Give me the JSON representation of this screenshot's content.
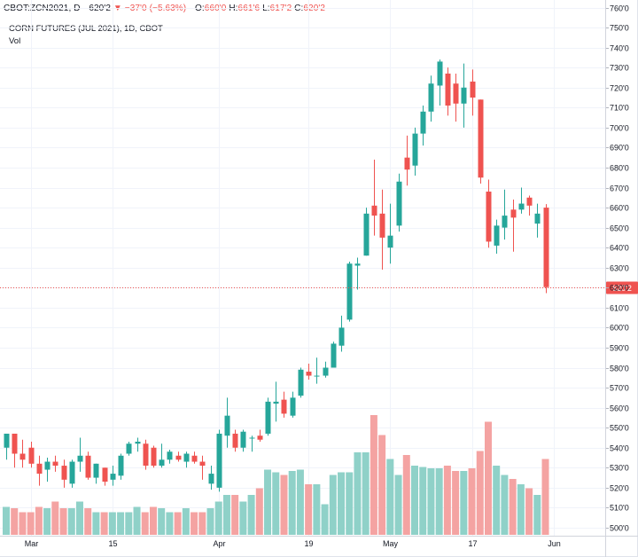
{
  "header": {
    "symbol": "CBOT:ZCN2021",
    "interval": "D",
    "last": "620'2",
    "arrow": "▼",
    "change": "−37'0 (−5.63%)",
    "open_label": "O:",
    "open": "660'0",
    "high_label": "H:",
    "high": "661'6",
    "low_label": "L:",
    "low": "617'2",
    "close_label": "C:",
    "close": "620'2"
  },
  "legend": {
    "title": "CORN FUTURES (JUL 2021), 1D, CBOT",
    "volume_label": "Vol"
  },
  "price_badge": "620'2",
  "colors": {
    "up": "#26a69a",
    "down": "#ef5350",
    "vol_up": "#8fd1c8",
    "vol_down": "#f4a3a2",
    "grid": "#f0f3fa",
    "price_line": "#ef5350"
  },
  "chart_data": {
    "type": "candlestick",
    "title": "CORN FUTURES (JUL 2021), 1D, CBOT",
    "y_axis": {
      "ticks": [
        "500'0",
        "510'0",
        "520'0",
        "530'0",
        "540'0",
        "550'0",
        "560'0",
        "570'0",
        "580'0",
        "590'0",
        "600'0",
        "610'0",
        "620'0",
        "630'0",
        "640'0",
        "650'0",
        "660'0",
        "670'0",
        "680'0",
        "690'0",
        "700'0",
        "710'0",
        "720'0",
        "730'0",
        "740'0",
        "750'0",
        "760'0"
      ],
      "range": [
        496,
        762
      ],
      "position": "right"
    },
    "x_axis": {
      "labels": [
        {
          "text": "Mar",
          "index": 3
        },
        {
          "text": "15",
          "index": 13
        },
        {
          "text": "Apr",
          "index": 26
        },
        {
          "text": "19",
          "index": 37
        },
        {
          "text": "May",
          "index": 47
        },
        {
          "text": "17",
          "index": 57
        },
        {
          "text": "Jun",
          "index": 67
        }
      ]
    },
    "volume_scale_max": 1,
    "candles": [
      {
        "o": 540,
        "h": 547,
        "l": 534,
        "c": 547,
        "v": 0.21
      },
      {
        "o": 547,
        "h": 547,
        "l": 530,
        "c": 537,
        "v": 0.2
      },
      {
        "o": 537,
        "h": 544,
        "l": 530,
        "c": 534,
        "v": 0.17
      },
      {
        "o": 540,
        "h": 543,
        "l": 530,
        "c": 532,
        "v": 0.17
      },
      {
        "o": 532,
        "h": 536,
        "l": 521,
        "c": 527,
        "v": 0.21
      },
      {
        "o": 529,
        "h": 535,
        "l": 523,
        "c": 533,
        "v": 0.2
      },
      {
        "o": 533,
        "h": 536,
        "l": 528,
        "c": 531,
        "v": 0.25
      },
      {
        "o": 531,
        "h": 534,
        "l": 520,
        "c": 524,
        "v": 0.2
      },
      {
        "o": 522,
        "h": 534,
        "l": 520,
        "c": 533,
        "v": 0.2
      },
      {
        "o": 533,
        "h": 545,
        "l": 528,
        "c": 536,
        "v": 0.25
      },
      {
        "o": 536,
        "h": 538,
        "l": 524,
        "c": 525,
        "v": 0.2
      },
      {
        "o": 525,
        "h": 532,
        "l": 522,
        "c": 532,
        "v": 0.17
      },
      {
        "o": 530,
        "h": 530,
        "l": 521,
        "c": 523,
        "v": 0.17
      },
      {
        "o": 524,
        "h": 531,
        "l": 521,
        "c": 527,
        "v": 0.17
      },
      {
        "o": 526,
        "h": 537,
        "l": 524,
        "c": 536,
        "v": 0.17
      },
      {
        "o": 537,
        "h": 543,
        "l": 536,
        "c": 542,
        "v": 0.17
      },
      {
        "o": 542,
        "h": 545,
        "l": 538,
        "c": 543,
        "v": 0.21
      },
      {
        "o": 542,
        "h": 544,
        "l": 529,
        "c": 531,
        "v": 0.17
      },
      {
        "o": 540,
        "h": 541,
        "l": 530,
        "c": 531,
        "v": 0.21
      },
      {
        "o": 531,
        "h": 542,
        "l": 530,
        "c": 534,
        "v": 0.2
      },
      {
        "o": 534,
        "h": 539,
        "l": 532,
        "c": 538,
        "v": 0.17
      },
      {
        "o": 536,
        "h": 538,
        "l": 533,
        "c": 534,
        "v": 0.17
      },
      {
        "o": 533,
        "h": 538,
        "l": 530,
        "c": 537,
        "v": 0.2
      },
      {
        "o": 536,
        "h": 538,
        "l": 532,
        "c": 533,
        "v": 0.17
      },
      {
        "o": 533,
        "h": 536,
        "l": 524,
        "c": 531,
        "v": 0.17
      },
      {
        "o": 522,
        "h": 531,
        "l": 519,
        "c": 527,
        "v": 0.2
      },
      {
        "o": 520,
        "h": 549,
        "l": 518,
        "c": 547,
        "v": 0.25
      },
      {
        "o": 546,
        "h": 565,
        "l": 540,
        "c": 556,
        "v": 0.3
      },
      {
        "o": 547,
        "h": 549,
        "l": 538,
        "c": 540,
        "v": 0.3
      },
      {
        "o": 540,
        "h": 549,
        "l": 538,
        "c": 548,
        "v": 0.25
      },
      {
        "o": 545,
        "h": 546,
        "l": 538,
        "c": 545,
        "v": 0.3
      },
      {
        "o": 546,
        "h": 549,
        "l": 543,
        "c": 544,
        "v": 0.35
      },
      {
        "o": 547,
        "h": 565,
        "l": 546,
        "c": 563,
        "v": 0.49
      },
      {
        "o": 562,
        "h": 573,
        "l": 553,
        "c": 563,
        "v": 0.47
      },
      {
        "o": 564,
        "h": 568,
        "l": 555,
        "c": 557,
        "v": 0.45
      },
      {
        "o": 556,
        "h": 568,
        "l": 555,
        "c": 565,
        "v": 0.48
      },
      {
        "o": 566,
        "h": 580,
        "l": 565,
        "c": 579,
        "v": 0.49
      },
      {
        "o": 578,
        "h": 582,
        "l": 574,
        "c": 576,
        "v": 0.38
      },
      {
        "o": 576,
        "h": 585,
        "l": 572,
        "c": 576,
        "v": 0.38
      },
      {
        "o": 576,
        "h": 583,
        "l": 575,
        "c": 580,
        "v": 0.23
      },
      {
        "o": 580,
        "h": 593,
        "l": 580,
        "c": 592,
        "v": 0.45
      },
      {
        "o": 591,
        "h": 606,
        "l": 588,
        "c": 600,
        "v": 0.47
      },
      {
        "o": 604,
        "h": 633,
        "l": 603,
        "c": 632,
        "v": 0.47
      },
      {
        "o": 631,
        "h": 635,
        "l": 619,
        "c": 632,
        "v": 0.62
      },
      {
        "o": 636,
        "h": 660,
        "l": 636,
        "c": 657,
        "v": 0.62
      },
      {
        "o": 661,
        "h": 684,
        "l": 646,
        "c": 656,
        "v": 0.9
      },
      {
        "o": 657,
        "h": 669,
        "l": 629,
        "c": 645,
        "v": 0.75
      },
      {
        "o": 640,
        "h": 662,
        "l": 632,
        "c": 646,
        "v": 0.57
      },
      {
        "o": 651,
        "h": 677,
        "l": 648,
        "c": 673,
        "v": 0.45
      },
      {
        "o": 685,
        "h": 696,
        "l": 671,
        "c": 679,
        "v": 0.6
      },
      {
        "o": 681,
        "h": 700,
        "l": 676,
        "c": 697,
        "v": 0.52
      },
      {
        "o": 697,
        "h": 711,
        "l": 691,
        "c": 708,
        "v": 0.51
      },
      {
        "o": 708,
        "h": 726,
        "l": 703,
        "c": 722,
        "v": 0.5
      },
      {
        "o": 721,
        "h": 734,
        "l": 711,
        "c": 733,
        "v": 0.5
      },
      {
        "o": 727,
        "h": 730,
        "l": 706,
        "c": 711,
        "v": 0.52
      },
      {
        "o": 722,
        "h": 727,
        "l": 703,
        "c": 712,
        "v": 0.48
      },
      {
        "o": 712,
        "h": 732,
        "l": 700,
        "c": 720,
        "v": 0.48
      },
      {
        "o": 723,
        "h": 729,
        "l": 706,
        "c": 715,
        "v": 0.5
      },
      {
        "o": 714,
        "h": 714,
        "l": 672,
        "c": 675,
        "v": 0.63
      },
      {
        "o": 668,
        "h": 674,
        "l": 640,
        "c": 643,
        "v": 0.85
      },
      {
        "o": 641,
        "h": 654,
        "l": 637,
        "c": 651,
        "v": 0.52
      },
      {
        "o": 650,
        "h": 669,
        "l": 644,
        "c": 656,
        "v": 0.45
      },
      {
        "o": 659,
        "h": 664,
        "l": 638,
        "c": 655,
        "v": 0.42
      },
      {
        "o": 659,
        "h": 670,
        "l": 657,
        "c": 662,
        "v": 0.38
      },
      {
        "o": 665,
        "h": 666,
        "l": 656,
        "c": 661,
        "v": 0.35
      },
      {
        "o": 652,
        "h": 662,
        "l": 645,
        "c": 657,
        "v": 0.3
      },
      {
        "o": 660,
        "h": 661.75,
        "l": 617.25,
        "c": 620.25,
        "v": 0.57
      }
    ]
  }
}
